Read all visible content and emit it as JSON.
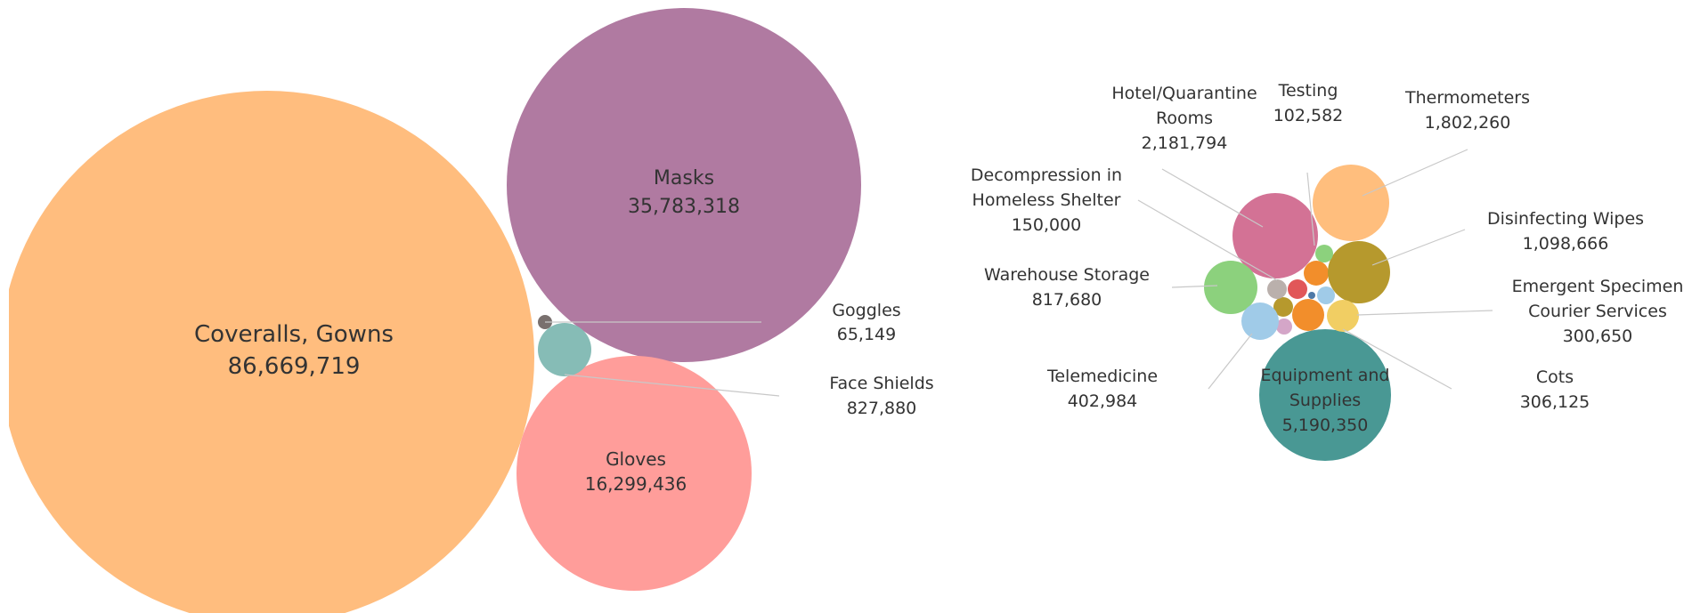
{
  "chart_data": [
    {
      "type": "bubble",
      "title": "",
      "bubbles": [
        {
          "label": [
            "Coveralls, Gowns"
          ],
          "value_text": "86,669,719",
          "value": 86669719,
          "color": "#ffbd7e",
          "labeled_inside": true
        },
        {
          "label": [
            "Masks"
          ],
          "value_text": "35,783,318",
          "value": 35783318,
          "color": "#b07aa1",
          "labeled_inside": true
        },
        {
          "label": [
            "Gloves"
          ],
          "value_text": "16,299,436",
          "value": 16299436,
          "color": "#ff9d9a",
          "labeled_inside": true
        },
        {
          "label": [
            "Face Shields"
          ],
          "value_text": "827,880",
          "value": 827880,
          "color": "#86bcb6",
          "labeled_inside": false
        },
        {
          "label": [
            "Goggles"
          ],
          "value_text": "65,149",
          "value": 65149,
          "color": "#79706e",
          "labeled_inside": false
        }
      ]
    },
    {
      "type": "bubble",
      "title": "",
      "bubbles": [
        {
          "label": [
            "Equipment and",
            "Supplies"
          ],
          "value_text": "5,190,350",
          "value": 5190350,
          "color": "#499894",
          "labeled_inside": true
        },
        {
          "label": [
            "Hotel/Quarantine",
            "Rooms"
          ],
          "value_text": "2,181,794",
          "value": 2181794,
          "color": "#d37295",
          "labeled_inside": false
        },
        {
          "label": [
            "Thermometers"
          ],
          "value_text": "1,802,260",
          "value": 1802260,
          "color": "#ffbe7d",
          "labeled_inside": false
        },
        {
          "label": [
            "Disinfecting Wipes"
          ],
          "value_text": "1,098,666",
          "value": 1098666,
          "color": "#b6992d",
          "labeled_inside": false
        },
        {
          "label": [
            "Warehouse Storage"
          ],
          "value_text": "817,680",
          "value": 817680,
          "color": "#8cd17d",
          "labeled_inside": false
        },
        {
          "label": [
            "Telemedicine"
          ],
          "value_text": "402,984",
          "value": 402984,
          "color": "#a0cbe8",
          "labeled_inside": false
        },
        {
          "label": [
            "Cots"
          ],
          "value_text": "306,125",
          "value": 306125,
          "color": "#f1ce63",
          "labeled_inside": false
        },
        {
          "label": [
            "Emergent Specimen",
            "Courier Services"
          ],
          "value_text": "300,650",
          "value": 300650,
          "color": "#f28e2b",
          "labeled_inside": false
        },
        {
          "label": [
            "Decompression in",
            "Homeless Shelter"
          ],
          "value_text": "150,000",
          "value": 150000,
          "color": "#bab0ac",
          "labeled_inside": false
        },
        {
          "label": [
            "Testing"
          ],
          "value_text": "102,582",
          "value": 102582,
          "color": "#8cd17d",
          "labeled_inside": false
        }
      ],
      "unlabeled_bubble_colors": [
        "#f28e2b",
        "#b6992d",
        "#e15759",
        "#d4a6c8",
        "#a0cbe8",
        "#4e79a7"
      ]
    }
  ]
}
